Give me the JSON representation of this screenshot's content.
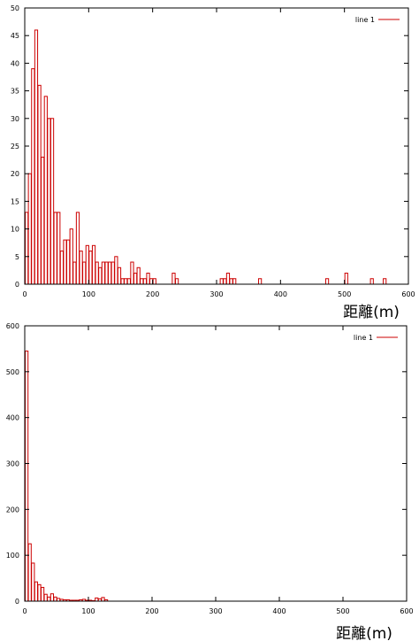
{
  "chart_data": [
    {
      "type": "bar",
      "xlabel": "距離(m)",
      "ylabel": "",
      "xlim": [
        0,
        600
      ],
      "ylim": [
        0,
        50
      ],
      "xticks": [
        0,
        100,
        200,
        300,
        400,
        500,
        600
      ],
      "yticks": [
        0,
        5,
        10,
        15,
        20,
        25,
        30,
        35,
        40,
        45,
        50
      ],
      "legend_position": "top-right",
      "bin_width": 5,
      "series": [
        {
          "name": "line 1",
          "color": "#cc0000",
          "x": [
            0,
            5,
            10,
            15,
            20,
            25,
            30,
            35,
            40,
            45,
            50,
            55,
            60,
            65,
            70,
            75,
            80,
            85,
            90,
            95,
            100,
            105,
            110,
            115,
            120,
            125,
            130,
            135,
            140,
            145,
            150,
            155,
            160,
            165,
            170,
            175,
            180,
            185,
            190,
            195,
            200,
            205,
            210,
            215,
            220,
            225,
            230,
            235,
            240,
            245,
            250,
            255,
            260,
            265,
            270,
            275,
            280,
            285,
            290,
            295,
            300,
            305,
            310,
            315,
            320,
            325,
            330,
            335,
            340,
            345,
            350,
            355,
            360,
            365,
            370,
            375,
            380,
            385,
            390,
            395,
            400,
            405,
            410,
            415,
            420,
            425,
            430,
            435,
            440,
            445,
            450,
            455,
            460,
            465,
            470,
            475,
            480,
            485,
            490,
            495,
            500,
            505,
            510,
            515,
            520,
            525,
            530,
            535,
            540,
            545,
            550,
            555,
            560
          ],
          "values": [
            13,
            20,
            39,
            46,
            36,
            23,
            34,
            30,
            30,
            13,
            13,
            6,
            8,
            8,
            10,
            4,
            13,
            6,
            4,
            7,
            6,
            7,
            4,
            3,
            4,
            4,
            4,
            4,
            5,
            3,
            1,
            1,
            1,
            4,
            2,
            3,
            1,
            1,
            2,
            1,
            1,
            0,
            0,
            0,
            0,
            0,
            2,
            1,
            0,
            0,
            0,
            0,
            0,
            0,
            0,
            0,
            0,
            0,
            0,
            0,
            0,
            1,
            1,
            2,
            1,
            1,
            0,
            0,
            0,
            0,
            0,
            0,
            0,
            1,
            0,
            0,
            0,
            0,
            0,
            0,
            0,
            0,
            0,
            0,
            0,
            0,
            0,
            0,
            0,
            0,
            0,
            0,
            0,
            0,
            1,
            0,
            0,
            0,
            0,
            0,
            2,
            0,
            0,
            0,
            0,
            0,
            0,
            0,
            1,
            0,
            0,
            0,
            1
          ]
        }
      ]
    },
    {
      "type": "bar",
      "xlabel": "距離(m)",
      "ylabel": "",
      "xlim": [
        0,
        600
      ],
      "ylim": [
        0,
        600
      ],
      "xticks": [
        0,
        100,
        200,
        300,
        400,
        500,
        600
      ],
      "yticks": [
        0,
        100,
        200,
        300,
        400,
        500,
        600
      ],
      "legend_position": "top-right",
      "bin_width": 5,
      "series": [
        {
          "name": "line 1",
          "color": "#cc0000",
          "x": [
            0,
            5,
            10,
            15,
            20,
            25,
            30,
            35,
            40,
            45,
            50,
            55,
            60,
            65,
            70,
            75,
            80,
            85,
            90,
            95,
            100,
            105,
            110,
            115,
            120,
            125
          ],
          "values": [
            545,
            125,
            83,
            42,
            36,
            30,
            15,
            9,
            16,
            9,
            6,
            4,
            3,
            3,
            2,
            2,
            2,
            3,
            4,
            2,
            2,
            1,
            7,
            5,
            8,
            3
          ]
        }
      ]
    }
  ]
}
